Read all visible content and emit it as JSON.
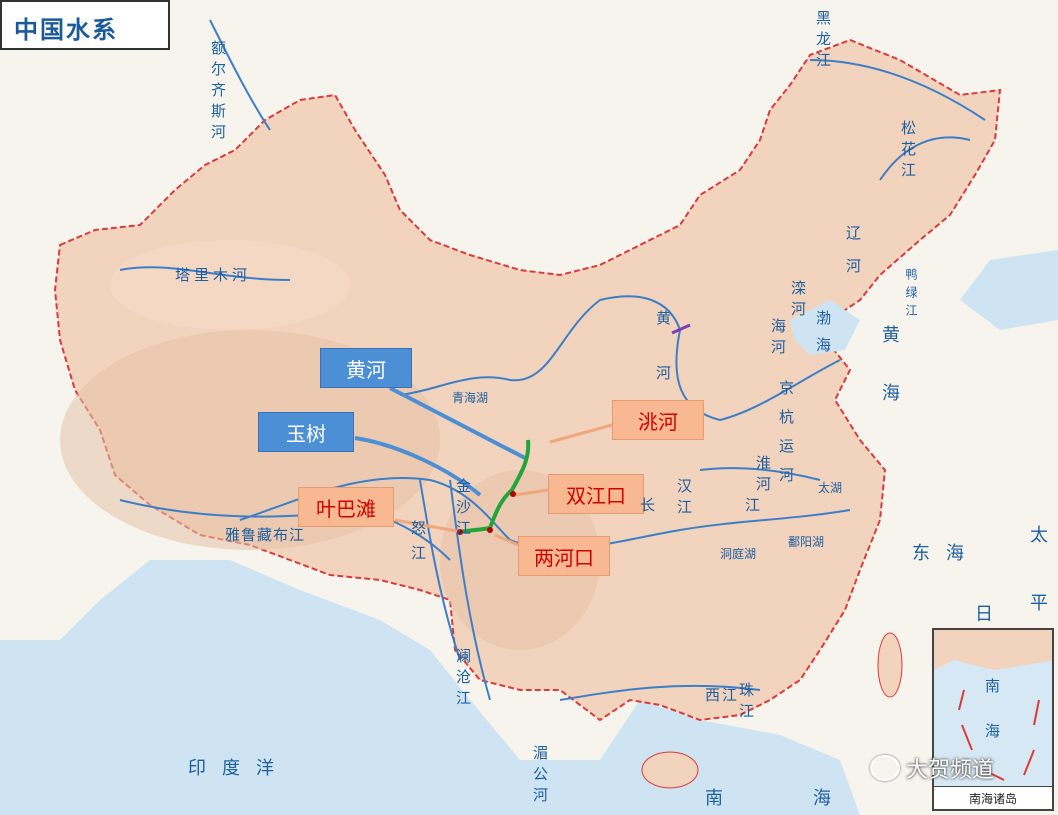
{
  "map": {
    "title": "中国水系",
    "colors": {
      "land": "#f2d3bd",
      "sea": "#cfe4f2",
      "river": "#3d7fc7",
      "border": "#d93b3b",
      "callout_blue": "#4d8fd4",
      "callout_orange": "#f7b892",
      "callout_text_red": "#d20000",
      "highlight_green": "#22a63a"
    }
  },
  "callouts": {
    "huanghe": "黄河",
    "yushu": "玉树",
    "taohe": "洮河",
    "shuangjiangkou": "双江口",
    "yebatan": "叶巴滩",
    "lianghekou": "两河口"
  },
  "labels": {
    "heilongjiang": "黑龙江",
    "songhuajiang": "松花江",
    "ertix": "额尔齐斯河",
    "tarim": "塔里木河",
    "qinghaihu": "青海湖",
    "huanghe_north": "黄河",
    "liaohe": "辽河",
    "luanhe": "滦河",
    "yalujiang": "鸭绿江",
    "haihe": "海河",
    "bohai": "渤海",
    "huanghai": "黄海",
    "donghai": "东海",
    "taipingyang": "太平洋",
    "jinghang": "京杭运河",
    "huaihe": "淮河",
    "hanjiang": "汉江",
    "changjiang": "长江",
    "taihu": "太湖",
    "dongtinghu": "洞庭湖",
    "poyanghu": "鄱阳湖",
    "jinsha": "金沙江",
    "nujiang": "怒江",
    "yarlung": "雅鲁藏布江",
    "lancang": "澜沧江",
    "xijiang": "西江",
    "zhujiang": "珠江",
    "yindu": "印度洋",
    "meigong": "湄公河",
    "nanhai": "南海",
    "nanhai_inset": "南海",
    "rishi": "日"
  },
  "inset": {
    "title": "南海诸岛"
  },
  "watermark": {
    "text": "大贺频道"
  }
}
